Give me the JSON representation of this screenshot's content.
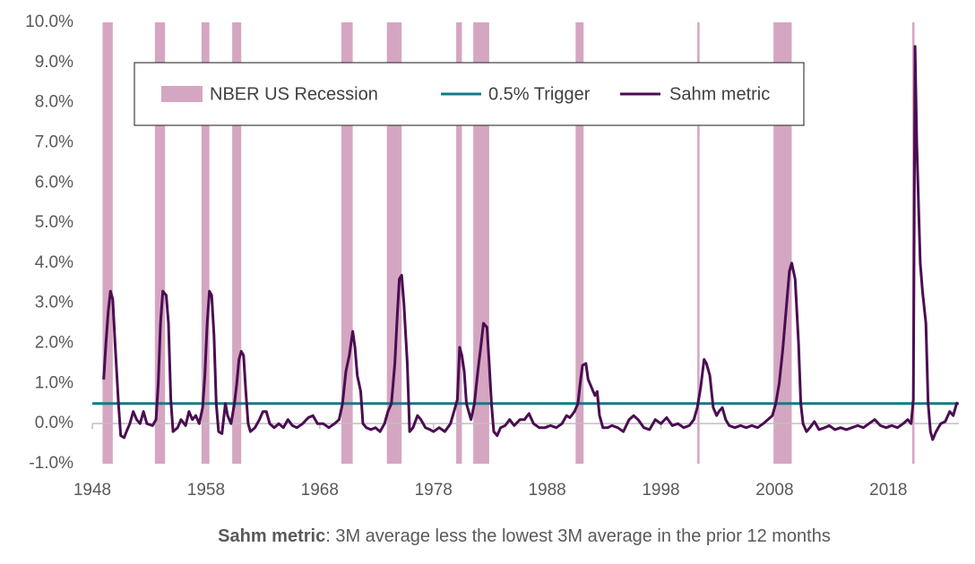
{
  "chart_data": {
    "type": "line",
    "xlim": [
      1948,
      2024.2
    ],
    "ylim": [
      -1,
      10
    ],
    "xticks": [
      1948,
      1958,
      1968,
      1978,
      1988,
      1998,
      2008,
      2018
    ],
    "yticks": [
      {
        "value": -1,
        "label": "-1.0%"
      },
      {
        "value": 0,
        "label": "0.0%"
      },
      {
        "value": 1,
        "label": "1.0%"
      },
      {
        "value": 2,
        "label": "2.0%"
      },
      {
        "value": 3,
        "label": "3.0%"
      },
      {
        "value": 4,
        "label": "4.0%"
      },
      {
        "value": 5,
        "label": "5.0%"
      },
      {
        "value": 6,
        "label": "6.0%"
      },
      {
        "value": 7,
        "label": "7.0%"
      },
      {
        "value": 8,
        "label": "8.0%"
      },
      {
        "value": 9,
        "label": "9.0%"
      },
      {
        "value": 10,
        "label": "10.0%"
      }
    ],
    "grid": false,
    "legend": "top",
    "recessions": {
      "name": "NBER US Recession",
      "color": "#d5a6c1",
      "periods": [
        [
          1948.9,
          1949.8
        ],
        [
          1953.5,
          1954.4
        ],
        [
          1957.6,
          1958.3
        ],
        [
          1960.3,
          1961.1
        ],
        [
          1969.9,
          1970.9
        ],
        [
          1973.9,
          1975.2
        ],
        [
          1980.0,
          1980.5
        ],
        [
          1981.5,
          1982.9
        ],
        [
          1990.5,
          1991.2
        ],
        [
          2001.2,
          2001.4
        ],
        [
          2007.9,
          2009.5
        ],
        [
          2020.1,
          2020.3
        ]
      ]
    },
    "trigger": {
      "name": "0.5% Trigger",
      "color": "#0e7c86",
      "value": 0.5
    },
    "series": [
      {
        "name": "Sahm metric",
        "color": "#4a0d52",
        "x": [
          1949.0,
          1949.2,
          1949.4,
          1949.6,
          1949.8,
          1950.0,
          1950.3,
          1950.5,
          1950.8,
          1951.0,
          1951.3,
          1951.6,
          1951.9,
          1952.2,
          1952.5,
          1952.8,
          1953.3,
          1953.6,
          1953.8,
          1954.0,
          1954.2,
          1954.5,
          1954.7,
          1954.9,
          1955.1,
          1955.5,
          1955.8,
          1956.2,
          1956.5,
          1956.8,
          1957.1,
          1957.4,
          1957.7,
          1957.9,
          1958.1,
          1958.3,
          1958.5,
          1958.7,
          1958.9,
          1959.1,
          1959.4,
          1959.7,
          1959.9,
          1960.2,
          1960.5,
          1960.7,
          1960.9,
          1961.1,
          1961.3,
          1961.5,
          1961.7,
          1961.9,
          1962.3,
          1962.7,
          1963.0,
          1963.3,
          1963.6,
          1964.0,
          1964.4,
          1964.8,
          1965.2,
          1965.6,
          1966.0,
          1966.5,
          1967.0,
          1967.4,
          1967.8,
          1968.3,
          1968.8,
          1969.3,
          1969.7,
          1970.0,
          1970.3,
          1970.6,
          1970.9,
          1971.1,
          1971.3,
          1971.6,
          1971.8,
          1972.1,
          1972.5,
          1972.9,
          1973.3,
          1973.7,
          1974.0,
          1974.3,
          1974.6,
          1974.8,
          1975.0,
          1975.2,
          1975.4,
          1975.7,
          1975.9,
          1976.2,
          1976.6,
          1976.9,
          1977.3,
          1977.7,
          1978.0,
          1978.5,
          1979.0,
          1979.5,
          1979.8,
          1980.1,
          1980.3,
          1980.5,
          1980.7,
          1980.9,
          1981.1,
          1981.3,
          1981.6,
          1981.9,
          1982.2,
          1982.4,
          1982.7,
          1982.9,
          1983.1,
          1983.3,
          1983.6,
          1983.9,
          1984.3,
          1984.7,
          1985.1,
          1985.6,
          1986.0,
          1986.4,
          1986.8,
          1987.3,
          1987.8,
          1988.3,
          1988.8,
          1989.3,
          1989.7,
          1990.0,
          1990.4,
          1990.7,
          1990.9,
          1991.1,
          1991.4,
          1991.6,
          1991.9,
          1992.2,
          1992.4,
          1992.6,
          1992.9,
          1993.3,
          1993.7,
          1994.2,
          1994.7,
          1995.2,
          1995.6,
          1996.0,
          1996.5,
          1997.0,
          1997.5,
          1998.0,
          1998.5,
          1999.0,
          1999.5,
          2000.0,
          2000.5,
          2000.9,
          2001.2,
          2001.5,
          2001.8,
          2002.0,
          2002.3,
          2002.6,
          2002.9,
          2003.1,
          2003.4,
          2003.7,
          2004.0,
          2004.5,
          2005.0,
          2005.5,
          2006.0,
          2006.5,
          2007.0,
          2007.4,
          2007.8,
          2008.1,
          2008.4,
          2008.7,
          2009.0,
          2009.3,
          2009.5,
          2009.8,
          2010.1,
          2010.3,
          2010.5,
          2010.8,
          2011.1,
          2011.5,
          2011.9,
          2012.4,
          2012.8,
          2013.3,
          2013.8,
          2014.3,
          2014.8,
          2015.3,
          2015.8,
          2016.3,
          2016.8,
          2017.3,
          2017.8,
          2018.3,
          2018.8,
          2019.3,
          2019.7,
          2020.0,
          2020.2,
          2020.35,
          2020.5,
          2020.8,
          2021.0,
          2021.3,
          2021.5,
          2021.7,
          2021.9,
          2022.2,
          2022.6,
          2023.0,
          2023.4,
          2023.7,
          2024.0,
          2024.1
        ],
        "values": [
          1.1,
          2.0,
          2.8,
          3.3,
          3.1,
          2.0,
          0.5,
          -0.3,
          -0.35,
          -0.2,
          0.0,
          0.3,
          0.1,
          0.0,
          0.3,
          0.0,
          -0.05,
          0.1,
          1.0,
          2.5,
          3.3,
          3.2,
          2.5,
          0.6,
          -0.2,
          -0.1,
          0.1,
          -0.05,
          0.3,
          0.1,
          0.2,
          0.0,
          0.4,
          1.2,
          2.5,
          3.3,
          3.2,
          2.2,
          0.5,
          -0.2,
          -0.25,
          0.5,
          0.2,
          0.0,
          0.5,
          1.0,
          1.6,
          1.8,
          1.7,
          0.8,
          0.0,
          -0.2,
          -0.1,
          0.1,
          0.3,
          0.3,
          0.0,
          -0.1,
          0.0,
          -0.1,
          0.1,
          -0.05,
          -0.1,
          0.0,
          0.15,
          0.2,
          0.0,
          0.0,
          -0.1,
          0.0,
          0.1,
          0.5,
          1.3,
          1.7,
          2.3,
          1.9,
          1.2,
          0.8,
          0.0,
          -0.1,
          -0.15,
          -0.1,
          -0.2,
          0.0,
          0.3,
          0.5,
          1.5,
          2.6,
          3.6,
          3.7,
          3.0,
          1.5,
          -0.2,
          -0.1,
          0.2,
          0.1,
          -0.1,
          -0.15,
          -0.2,
          -0.1,
          -0.2,
          0.0,
          0.3,
          0.6,
          1.9,
          1.7,
          1.3,
          0.5,
          0.3,
          0.1,
          0.5,
          1.3,
          2.0,
          2.5,
          2.4,
          1.5,
          0.5,
          -0.2,
          -0.3,
          -0.1,
          -0.05,
          0.1,
          -0.05,
          0.1,
          0.1,
          0.25,
          0.0,
          -0.1,
          -0.1,
          -0.05,
          -0.1,
          0.0,
          0.2,
          0.15,
          0.3,
          0.5,
          1.0,
          1.45,
          1.5,
          1.1,
          0.9,
          0.7,
          0.8,
          0.2,
          -0.1,
          -0.1,
          -0.05,
          -0.1,
          -0.2,
          0.1,
          0.2,
          0.1,
          -0.1,
          -0.15,
          0.1,
          0.0,
          0.15,
          -0.05,
          0.0,
          -0.1,
          -0.05,
          0.1,
          0.4,
          0.9,
          1.6,
          1.5,
          1.2,
          0.4,
          0.2,
          0.3,
          0.4,
          0.1,
          -0.05,
          -0.1,
          -0.05,
          -0.1,
          -0.05,
          -0.1,
          0.0,
          0.1,
          0.2,
          0.5,
          1.0,
          1.8,
          2.8,
          3.8,
          4.0,
          3.6,
          2.0,
          0.5,
          0.0,
          -0.2,
          -0.1,
          0.05,
          -0.15,
          -0.1,
          -0.05,
          -0.15,
          -0.1,
          -0.15,
          -0.1,
          -0.05,
          -0.1,
          0.0,
          0.1,
          -0.05,
          -0.1,
          -0.05,
          -0.1,
          0.0,
          0.1,
          0.0,
          0.6,
          9.4,
          7.0,
          4.0,
          3.3,
          2.5,
          0.5,
          -0.2,
          -0.4,
          -0.2,
          0.0,
          0.05,
          0.3,
          0.2,
          0.5,
          0.53
        ]
      }
    ],
    "note": {
      "bold": "Sahm metric",
      "text": ": 3M average less the lowest 3M average in the prior 12 months"
    }
  }
}
